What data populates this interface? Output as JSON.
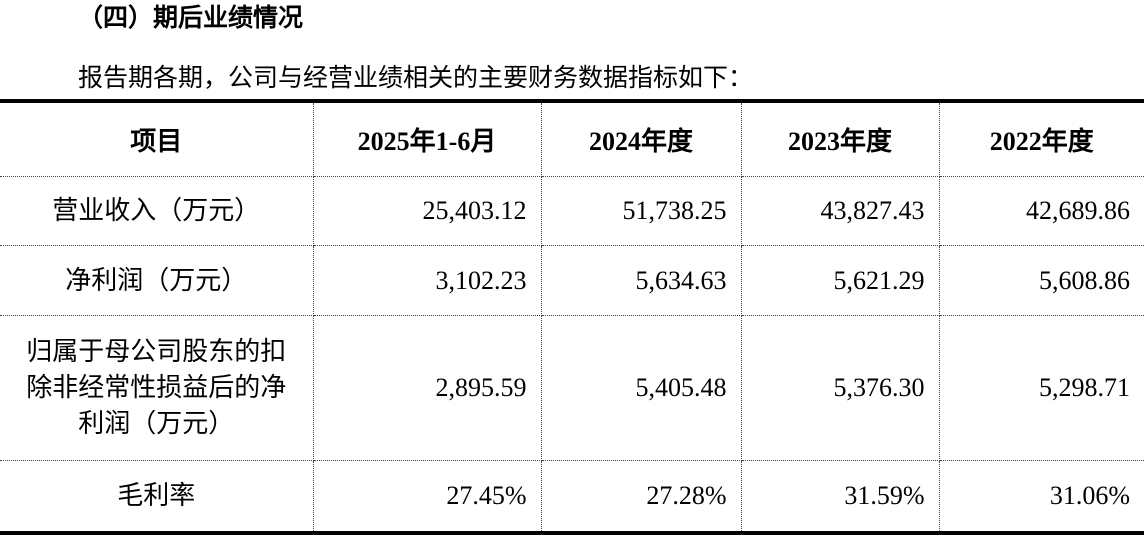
{
  "heading": "（四）期后业绩情况",
  "intro": "报告期各期，公司与经营业绩相关的主要财务数据指标如下：",
  "table": {
    "columns": [
      "项目",
      "2025年1-6月",
      "2024年度",
      "2023年度",
      "2022年度"
    ],
    "rows": [
      [
        "营业收入（万元）",
        "25,403.12",
        "51,738.25",
        "43,827.43",
        "42,689.86"
      ],
      [
        "净利润（万元）",
        "3,102.23",
        "5,634.63",
        "5,621.29",
        "5,608.86"
      ],
      [
        "归属于母公司股东的扣除非经常性损益后的净利润（万元）",
        "2,895.59",
        "5,405.48",
        "5,376.30",
        "5,298.71"
      ],
      [
        "毛利率",
        "27.45%",
        "27.28%",
        "31.59%",
        "31.06%"
      ]
    ]
  }
}
